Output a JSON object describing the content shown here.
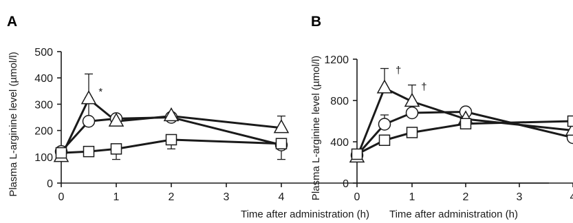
{
  "chart_data": [
    {
      "type": "line",
      "panel_label": "A",
      "xlabel": "Time after administration (h)",
      "ylabel": "Plasma L-arginine level (µmol/l)",
      "xlim": [
        0,
        4
      ],
      "ylim": [
        0,
        500
      ],
      "x_ticks": [
        0,
        1,
        2,
        3,
        4
      ],
      "y_ticks": [
        0,
        100,
        200,
        300,
        400,
        500
      ],
      "grid": false,
      "series": [
        {
          "marker": "circle",
          "x": [
            0,
            0.5,
            1,
            2,
            4
          ],
          "values": [
            120,
            235,
            245,
            250,
            145
          ],
          "err_up": [
            0,
            90,
            0,
            0,
            0
          ]
        },
        {
          "marker": "triangle",
          "x": [
            0,
            0.5,
            1,
            2,
            4
          ],
          "values": [
            100,
            320,
            235,
            255,
            210
          ],
          "err_up": [
            0,
            95,
            0,
            0,
            45
          ]
        },
        {
          "marker": "square",
          "x": [
            0,
            0.5,
            1,
            2,
            4
          ],
          "values": [
            115,
            120,
            130,
            165,
            150
          ],
          "err_up": [
            0,
            0,
            0,
            0,
            0
          ],
          "err_down": [
            0,
            0,
            40,
            35,
            60
          ]
        }
      ],
      "annotations": [
        {
          "text": "*",
          "x": 0.68,
          "y": 335
        }
      ]
    },
    {
      "type": "line",
      "panel_label": "B",
      "xlabel": "Time after administration (h)",
      "ylabel": "Plasma L-arginine level (µmol/l)",
      "xlim": [
        0,
        4
      ],
      "ylim": [
        0,
        1200
      ],
      "x_ticks": [
        0,
        1,
        2,
        3,
        4
      ],
      "y_ticks": [
        0,
        400,
        800,
        1200
      ],
      "grid": false,
      "series": [
        {
          "marker": "circle",
          "x": [
            0,
            0.5,
            1,
            2,
            4
          ],
          "values": [
            270,
            570,
            680,
            690,
            440
          ],
          "err_up": [
            0,
            90,
            0,
            0,
            0
          ]
        },
        {
          "marker": "triangle",
          "x": [
            0,
            0.5,
            1,
            2,
            4
          ],
          "values": [
            250,
            920,
            790,
            620,
            510
          ],
          "err_up": [
            0,
            190,
            160,
            0,
            0
          ]
        },
        {
          "marker": "square",
          "x": [
            0,
            0.5,
            1,
            2,
            4
          ],
          "values": [
            280,
            415,
            490,
            575,
            600
          ],
          "err_up": [
            0,
            0,
            0,
            0,
            0
          ]
        }
      ],
      "annotations": [
        {
          "text": "†",
          "x": 0.7,
          "y": 1060
        },
        {
          "text": "†",
          "x": 1.17,
          "y": 900
        }
      ]
    }
  ]
}
